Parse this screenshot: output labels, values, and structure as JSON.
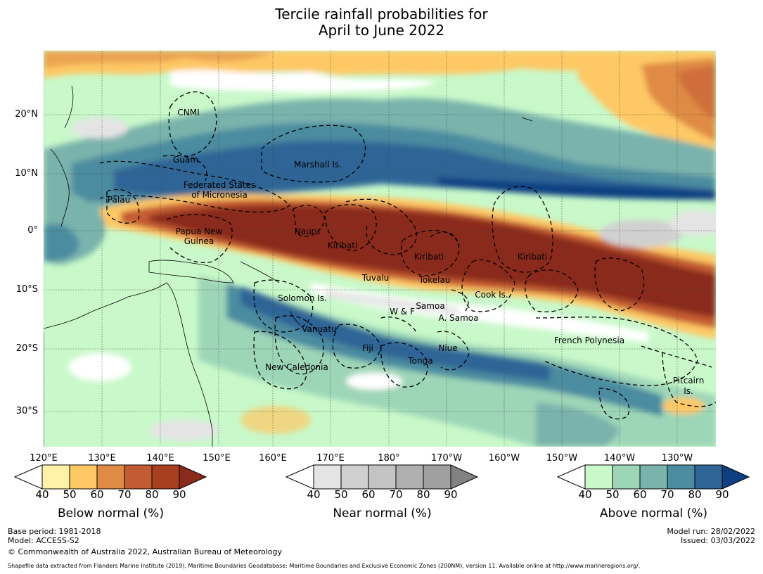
{
  "title": {
    "line1": "Tercile rainfall probabilities for",
    "line2": "April to June 2022"
  },
  "map": {
    "lat_labels": [
      "20°N",
      "10°N",
      "0°",
      "10°S",
      "20°S",
      "30°S"
    ],
    "lon_labels": [
      "120°E",
      "130°E",
      "140°E",
      "150°E",
      "160°E",
      "170°E",
      "180°",
      "170°W",
      "160°W",
      "150°W",
      "140°W",
      "130°W"
    ],
    "regions": [
      {
        "name": "CNMI"
      },
      {
        "name": "Guam"
      },
      {
        "name": "Marshall Is."
      },
      {
        "name": "Federated States"
      },
      {
        "name": "of Micronesia"
      },
      {
        "name": "Palau"
      },
      {
        "name": "Papua New"
      },
      {
        "name": "Guinea"
      },
      {
        "name": "Nauru"
      },
      {
        "name": "Kiribati"
      },
      {
        "name": "Kiribati"
      },
      {
        "name": "Kiribati"
      },
      {
        "name": "Tuvalu"
      },
      {
        "name": "Tokelau"
      },
      {
        "name": "Cook Is."
      },
      {
        "name": "Solomon Is."
      },
      {
        "name": "W & F"
      },
      {
        "name": "Samoa"
      },
      {
        "name": "A. Samoa"
      },
      {
        "name": "Vanuatu"
      },
      {
        "name": "Fiji"
      },
      {
        "name": "Niue"
      },
      {
        "name": "Tonga"
      },
      {
        "name": "French Polynesia"
      },
      {
        "name": "New Caledonia"
      },
      {
        "name": "Pitcairn"
      },
      {
        "name": "Is."
      }
    ]
  },
  "legends": {
    "below": {
      "title": "Below normal (%)",
      "ticks": [
        "40",
        "50",
        "60",
        "70",
        "80",
        "90"
      ],
      "colors": [
        "#fff2a8",
        "#fec865",
        "#df8b45",
        "#c45c33",
        "#a8401f",
        "#8a2a1a"
      ]
    },
    "near": {
      "title": "Near normal (%)",
      "ticks": [
        "40",
        "50",
        "60",
        "70",
        "80",
        "90"
      ],
      "colors": [
        "#e4e4e4",
        "#d0d0d0",
        "#c3c3c3",
        "#b0b0b0",
        "#a0a0a0",
        "#828282"
      ]
    },
    "above": {
      "title": "Above normal (%)",
      "ticks": [
        "40",
        "50",
        "60",
        "70",
        "80",
        "90"
      ],
      "colors": [
        "#c9f9ca",
        "#9dd5b7",
        "#7ab3ac",
        "#4c8ca0",
        "#2f6596",
        "#0d3f82"
      ]
    }
  },
  "footer": {
    "base_period": "Base period: 1981-2018",
    "model": "Model: ACCESS-S2",
    "copyright": "© Commonwealth of Australia 2022, Australian Bureau of Meteorology",
    "model_run": "Model run: 28/02/2022",
    "issued": "Issued: 03/03/2022",
    "shapefile": "Shapefile data extracted from Flanders Marine Institute (2019), Maritime Boundaries Geodatabase: Maritime Boundaries and Exclusive Economic Zones (200NM), version 11. Available online at http://www.marineregions.org/."
  }
}
